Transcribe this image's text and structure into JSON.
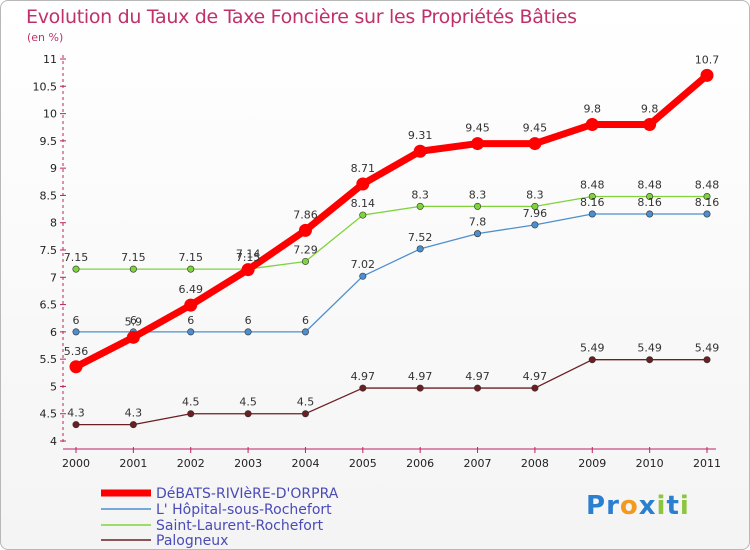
{
  "header": {
    "title": "Evolution du Taux de Taxe Foncière sur les Propriétés Bâties",
    "subtitle": "(en %)"
  },
  "logo": {
    "text": "Proxiti",
    "letters": [
      "P",
      "r",
      "o",
      "x",
      "i",
      "t",
      "i"
    ],
    "colors": [
      "#2a7fd0",
      "#2a7fd0",
      "#f39a1e",
      "#2a7fd0",
      "#8cc63e",
      "#2a7fd0",
      "#8cc63e"
    ]
  },
  "chart_data": {
    "type": "line",
    "x": [
      "2000",
      "2001",
      "2002",
      "2003",
      "2004",
      "2005",
      "2006",
      "2007",
      "2008",
      "2009",
      "2010",
      "2011"
    ],
    "ylim": [
      4,
      11
    ],
    "yticks": [
      "4",
      "4.5",
      "5",
      "5.5",
      "6",
      "6.5",
      "7",
      "7.5",
      "8",
      "8.5",
      "9",
      "9.5",
      "10",
      "10.5",
      "11"
    ],
    "grid": false,
    "legend": "bottom-left",
    "series": [
      {
        "name": "DéBATS-RIVIèRE-D'ORPRA",
        "color": "#ff0000",
        "values": [
          5.36,
          5.9,
          6.49,
          7.14,
          7.86,
          8.71,
          9.31,
          9.45,
          9.45,
          9.8,
          9.8,
          10.7
        ],
        "labels": [
          "5.36",
          "5.9",
          "6.49",
          "7.14",
          "7.86",
          "8.71",
          "9.31",
          "9.45",
          "9.45",
          "9.8",
          "9.8",
          "10.7"
        ]
      },
      {
        "name": "L' Hôpital-sous-Rochefort",
        "color": "#4d8fce",
        "values": [
          6,
          6,
          6,
          6,
          6,
          7.02,
          7.52,
          7.8,
          7.96,
          8.16,
          8.16,
          8.16
        ],
        "labels": [
          "6",
          "6",
          "6",
          "6",
          "6",
          "7.02",
          "7.52",
          "7.8",
          "7.96",
          "8.16",
          "8.16",
          "8.16"
        ]
      },
      {
        "name": "Saint-Laurent-Rochefort",
        "color": "#7ed43a",
        "values": [
          7.15,
          7.15,
          7.15,
          7.15,
          7.29,
          8.14,
          8.3,
          8.3,
          8.3,
          8.48,
          8.48,
          8.48
        ],
        "labels": [
          "7.15",
          "7.15",
          "7.15",
          "7.15",
          "7.29",
          "8.14",
          "8.3",
          "8.3",
          "8.3",
          "8.48",
          "8.48",
          "8.48"
        ]
      },
      {
        "name": "Palogneux",
        "color": "#6b1f22",
        "values": [
          4.3,
          4.3,
          4.5,
          4.5,
          4.5,
          4.97,
          4.97,
          4.97,
          4.97,
          5.49,
          5.49,
          5.49
        ],
        "labels": [
          "4.3",
          "4.3",
          "4.5",
          "4.5",
          "4.5",
          "4.97",
          "4.97",
          "4.97",
          "4.97",
          "5.49",
          "5.49",
          "5.49"
        ]
      }
    ]
  }
}
